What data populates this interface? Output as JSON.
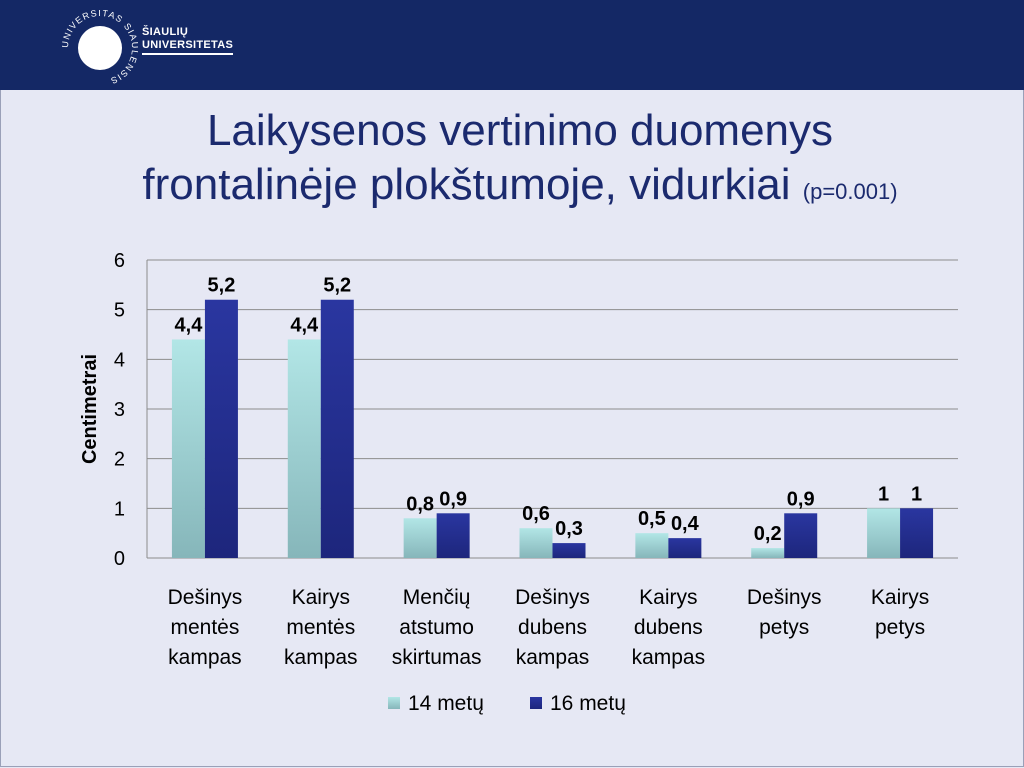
{
  "header": {
    "logo_name_line1": "ŠIAULIŲ",
    "logo_name_line2": "UNIVERSITETAS",
    "logo_ring_text": "UNIVERSITAS SIAULENSIS"
  },
  "slide": {
    "title_line1": "Laikysenos vertinimo duomenys",
    "title_line2": "frontalinėje plokštumoje, vidurkiai",
    "title_note": "(p=0.001)"
  },
  "colors": {
    "header_bg": "#142865",
    "title": "#1b2a6e",
    "series_14": "#a7dcdc",
    "series_16": "#232f8c"
  },
  "chart_data": {
    "type": "bar",
    "title": "Laikysenos vertinimo duomenys frontalinėje plokštumoje, vidurkiai (p=0.001)",
    "ylabel": "Centimetrai",
    "xlabel": "",
    "ylim": [
      0,
      6
    ],
    "yticks": [
      "0",
      "1",
      "2",
      "3",
      "4",
      "5",
      "6"
    ],
    "grid": true,
    "legend": "bottom",
    "categories": [
      [
        "Dešinys",
        "mentės",
        "kampas"
      ],
      [
        "Kairys",
        "mentės",
        "kampas"
      ],
      [
        "Menčių",
        "atstumo",
        "skirtumas"
      ],
      [
        "Dešinys",
        "dubens",
        "kampas"
      ],
      [
        "Kairys",
        "dubens",
        "kampas"
      ],
      [
        "Dešinys",
        "petys"
      ],
      [
        "Kairys",
        "petys"
      ]
    ],
    "series": [
      {
        "name": "14 metų",
        "values": [
          4.4,
          4.4,
          0.8,
          0.6,
          0.5,
          0.2,
          1
        ],
        "labels": [
          "4,4",
          "4,4",
          "0,8",
          "0,6",
          "0,5",
          "0,2",
          "1"
        ]
      },
      {
        "name": "16 metų",
        "values": [
          5.2,
          5.2,
          0.9,
          0.3,
          0.4,
          0.9,
          1
        ],
        "labels": [
          "5,2",
          "5,2",
          "0,9",
          "0,3",
          "0,4",
          "0,9",
          "1"
        ]
      }
    ]
  }
}
